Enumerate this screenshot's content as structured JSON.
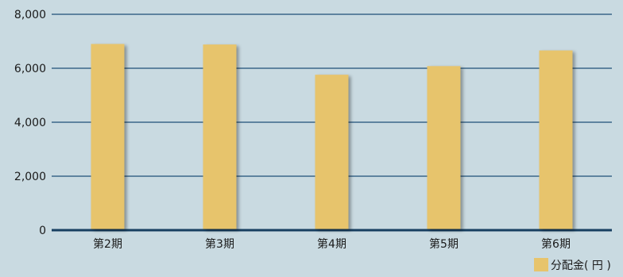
{
  "chart_data": {
    "type": "bar",
    "categories": [
      "第2期",
      "第3期",
      "第4期",
      "第5期",
      "第6期"
    ],
    "series": [
      {
        "name": "分配金( 円 )",
        "values": [
          6900,
          6880,
          5760,
          6080,
          6660
        ]
      }
    ],
    "ylim": [
      0,
      8000
    ],
    "yticks": [
      0,
      2000,
      4000,
      6000,
      8000
    ],
    "ytick_labels": [
      "0",
      "2,000",
      "4,000",
      "6,000",
      "8,000"
    ],
    "grid": true,
    "legend_position": "bottom-right",
    "colors": {
      "background": "#c9dae1",
      "bar": "#e7c46c",
      "bar_shadow": "#7f9aa3",
      "gridline": "#1f4f78",
      "baseline": "#173f61",
      "text": "#1a1a1a"
    }
  }
}
